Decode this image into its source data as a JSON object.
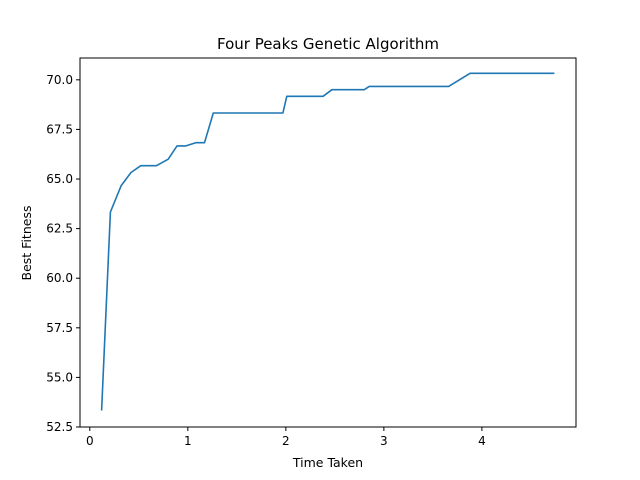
{
  "chart_data": {
    "type": "line",
    "title": "Four Peaks Genetic Algorithm",
    "xlabel": "Time Taken",
    "ylabel": "Best Fitness",
    "xlim": [
      -0.1,
      4.96
    ],
    "ylim": [
      52.5,
      71.1
    ],
    "xticks": [
      0,
      1,
      2,
      3,
      4
    ],
    "xtick_labels": [
      "0",
      "1",
      "2",
      "3",
      "4"
    ],
    "yticks": [
      52.5,
      55.0,
      57.5,
      60.0,
      62.5,
      65.0,
      67.5,
      70.0
    ],
    "ytick_labels": [
      "52.5",
      "55.0",
      "57.5",
      "60.0",
      "62.5",
      "65.0",
      "67.5",
      "70.0"
    ],
    "grid": false,
    "color": "#1f77b4",
    "series": [
      {
        "x": [
          0.12,
          0.21,
          0.32,
          0.42,
          0.52,
          0.68,
          0.8,
          0.89,
          0.98,
          1.08,
          1.17,
          1.26,
          1.4,
          1.6,
          1.8,
          1.97,
          2.01,
          2.1,
          2.2,
          2.3,
          2.38,
          2.47,
          2.6,
          2.7,
          2.8,
          2.85,
          3.0,
          3.2,
          3.42,
          3.56,
          3.66,
          3.88,
          3.95,
          4.15,
          4.4,
          4.74
        ],
        "y": [
          53.33,
          63.33,
          64.67,
          65.33,
          65.67,
          65.67,
          66.0,
          66.67,
          66.67,
          66.83,
          66.83,
          68.33,
          68.33,
          68.33,
          68.33,
          68.33,
          69.17,
          69.17,
          69.17,
          69.17,
          69.17,
          69.5,
          69.5,
          69.5,
          69.5,
          69.67,
          69.67,
          69.67,
          69.67,
          69.67,
          69.67,
          70.33,
          70.33,
          70.33,
          70.33,
          70.33
        ]
      }
    ]
  }
}
